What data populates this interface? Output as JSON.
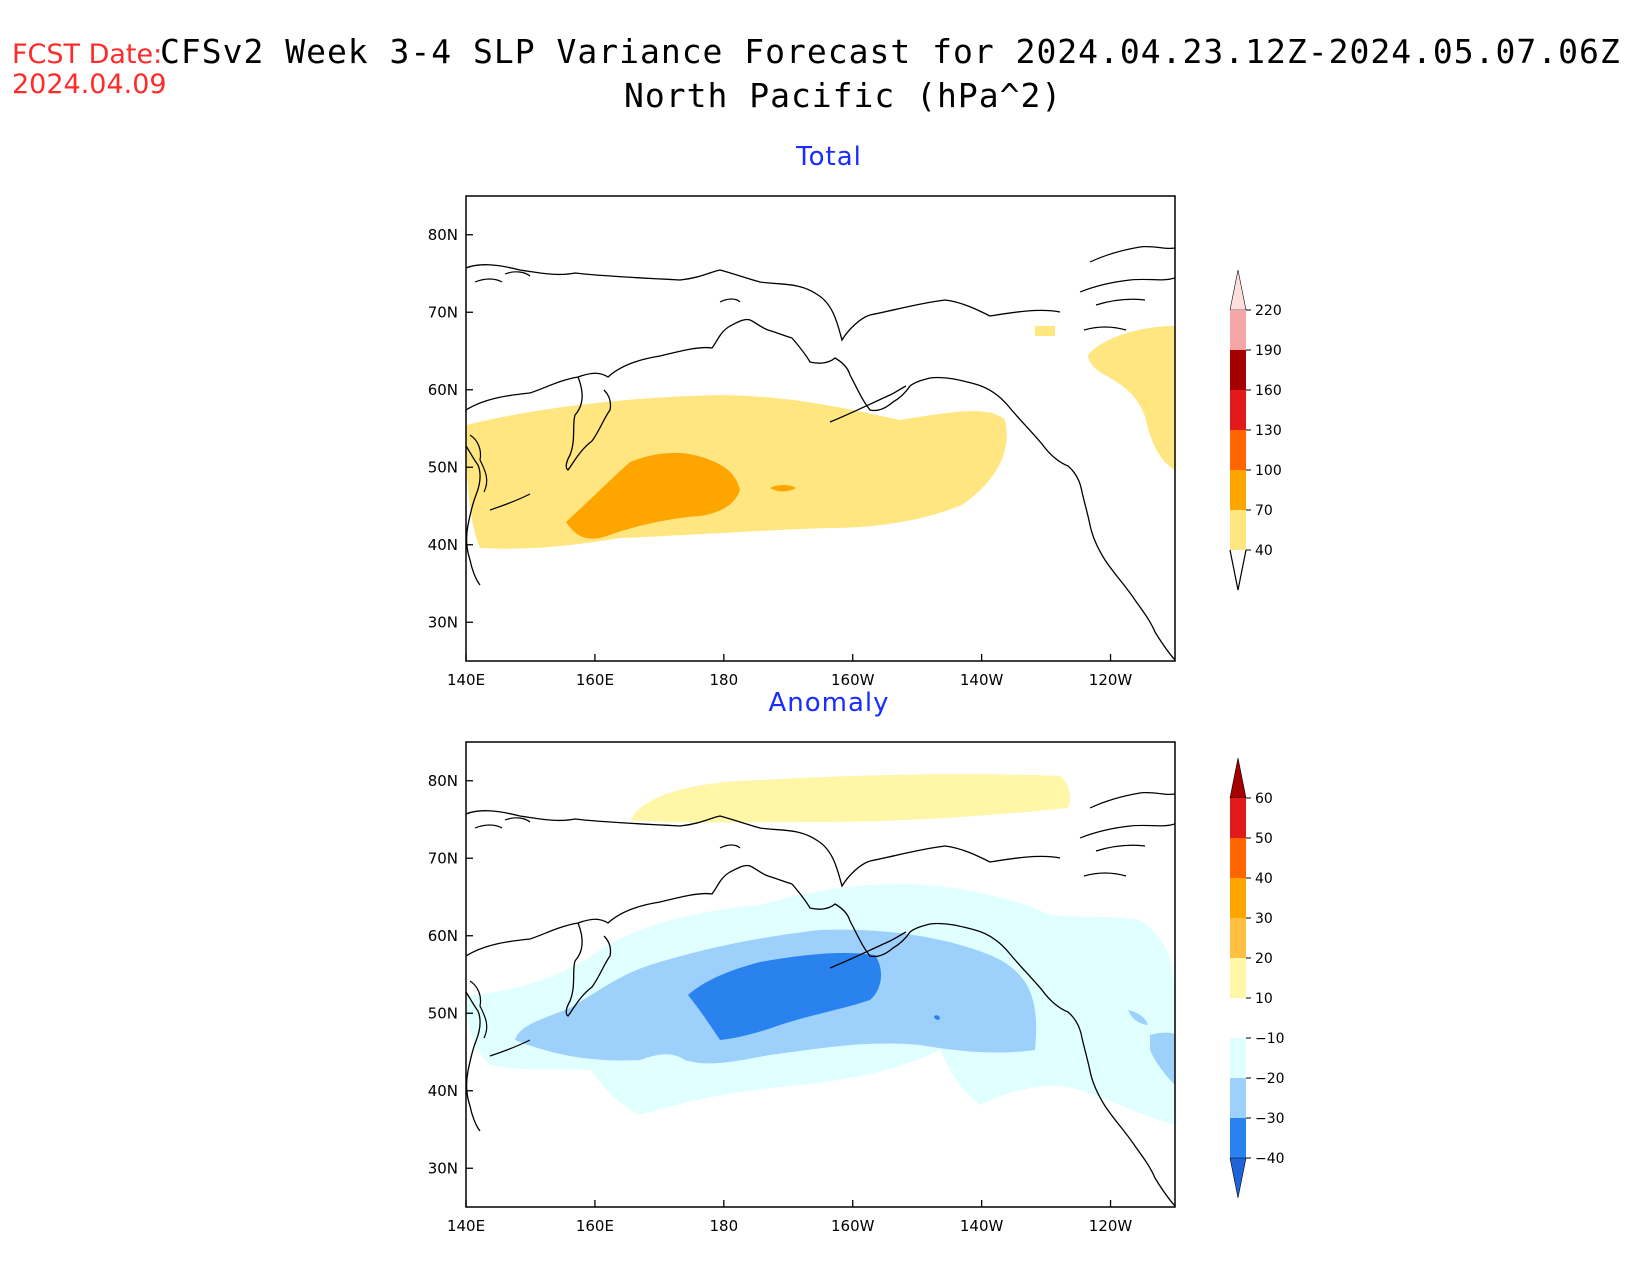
{
  "header": {
    "fcst_label": "FCST Date:",
    "fcst_date": "2024.04.09",
    "title_line1": "CFSv2 Week 3-4 SLP Variance Forecast for 2024.04.23.12Z-2024.05.07.06Z",
    "title_line2": "North Pacific (hPa^2)"
  },
  "axes": {
    "lon_labels": [
      "140E",
      "160E",
      "180",
      "160W",
      "140W",
      "120W"
    ],
    "lon_values": [
      140,
      160,
      180,
      200,
      220,
      240
    ],
    "lat_labels": [
      "80N",
      "70N",
      "60N",
      "50N",
      "40N",
      "30N"
    ],
    "lat_values": [
      80,
      70,
      60,
      50,
      40,
      30
    ],
    "lon_range": [
      140,
      250
    ],
    "lat_range": [
      25,
      85
    ]
  },
  "panels": {
    "total": {
      "title": "Total",
      "colorbar": {
        "labels": [
          "220",
          "190",
          "160",
          "130",
          "100",
          "70",
          "40"
        ],
        "colors": [
          "#f4a6a6",
          "#a50000",
          "#e31a1c",
          "#ff6600",
          "#ffa500",
          "#ffe680"
        ],
        "top_cap": "#fde0dd"
      }
    },
    "anomaly": {
      "title": "Anomaly",
      "colorbar": {
        "labels": [
          "60",
          "50",
          "40",
          "30",
          "20",
          "10",
          "−10",
          "−20",
          "−30",
          "−40"
        ],
        "colors": [
          "#e31a1c",
          "#ff6600",
          "#ffa500",
          "#ffbf40",
          "#fff6a8",
          "#ffffff",
          "#e0ffff",
          "#9dd0fb",
          "#2a82ef"
        ],
        "top_cap": "#a50000",
        "bottom_cap": "#1e64d8"
      }
    }
  }
}
